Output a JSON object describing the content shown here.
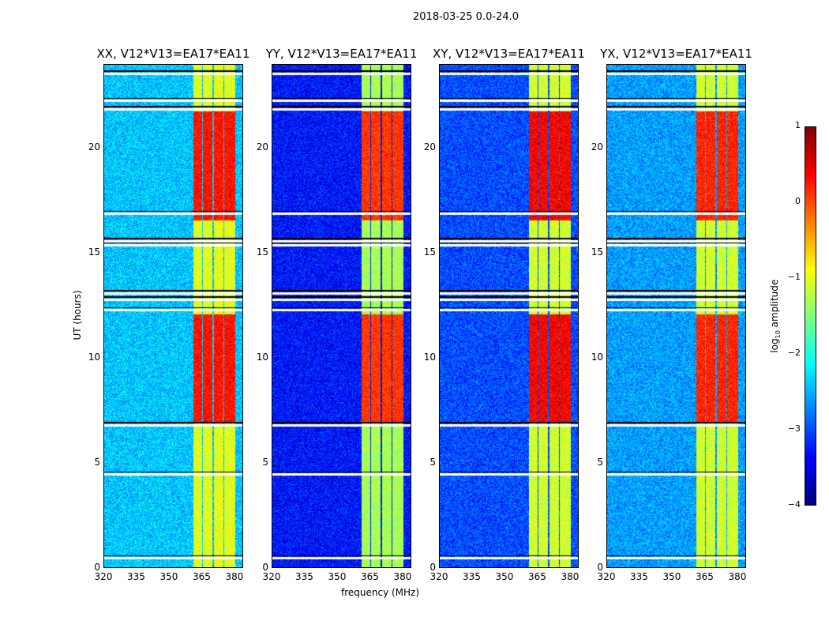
{
  "chart_data": {
    "type": "heatmap",
    "title": "2018-03-25 0.0-24.0",
    "xlabel": "frequency (MHz)",
    "ylabel": "UT (hours)",
    "xlim": [
      320,
      384
    ],
    "ylim": [
      0,
      24
    ],
    "xticks": [
      "320",
      "335",
      "350",
      "365",
      "380"
    ],
    "xtick_values": [
      320,
      335,
      350,
      365,
      380
    ],
    "yticks": [
      "0",
      "5",
      "10",
      "15",
      "20"
    ],
    "ytick_values": [
      0,
      5,
      10,
      15,
      20
    ],
    "panels": [
      {
        "title": "XX, V12*V13=EA17*EA11",
        "background_level": -2.4,
        "band_level": -1.0,
        "hot_level": 0.3
      },
      {
        "title": "YY, V12*V13=EA17*EA11",
        "background_level": -3.3,
        "band_level": -1.3,
        "hot_level": 0.1
      },
      {
        "title": "XY, V12*V13=EA17*EA11",
        "background_level": -3.0,
        "band_level": -1.1,
        "hot_level": 0.4
      },
      {
        "title": "YX, V12*V13=EA17*EA11",
        "background_level": -2.6,
        "band_level": -1.1,
        "hot_level": 0.2
      }
    ],
    "rfi_channels_mhz": [
      [
        361,
        365
      ],
      [
        365.5,
        370
      ],
      [
        370.5,
        375
      ],
      [
        375.5,
        380.5
      ]
    ],
    "hot_time_ranges_hours": [
      [
        6.9,
        12.1
      ],
      [
        16.6,
        21.8
      ]
    ],
    "flagged_time_hours": [
      0.45,
      4.45,
      6.8,
      12.3,
      12.8,
      13.1,
      15.4,
      15.6,
      16.9,
      21.9,
      22.3,
      23.6
    ],
    "colorbar": {
      "label": "log10 amplitude",
      "label_main": "log",
      "label_sub": "10",
      "label_rest": " amplitude",
      "range": [
        -4,
        1
      ],
      "ticks": [
        "1",
        "0",
        "−1",
        "−2",
        "−3",
        "−4"
      ],
      "tick_values": [
        1,
        0,
        -1,
        -2,
        -3,
        -4
      ],
      "colormap": "jet"
    }
  }
}
